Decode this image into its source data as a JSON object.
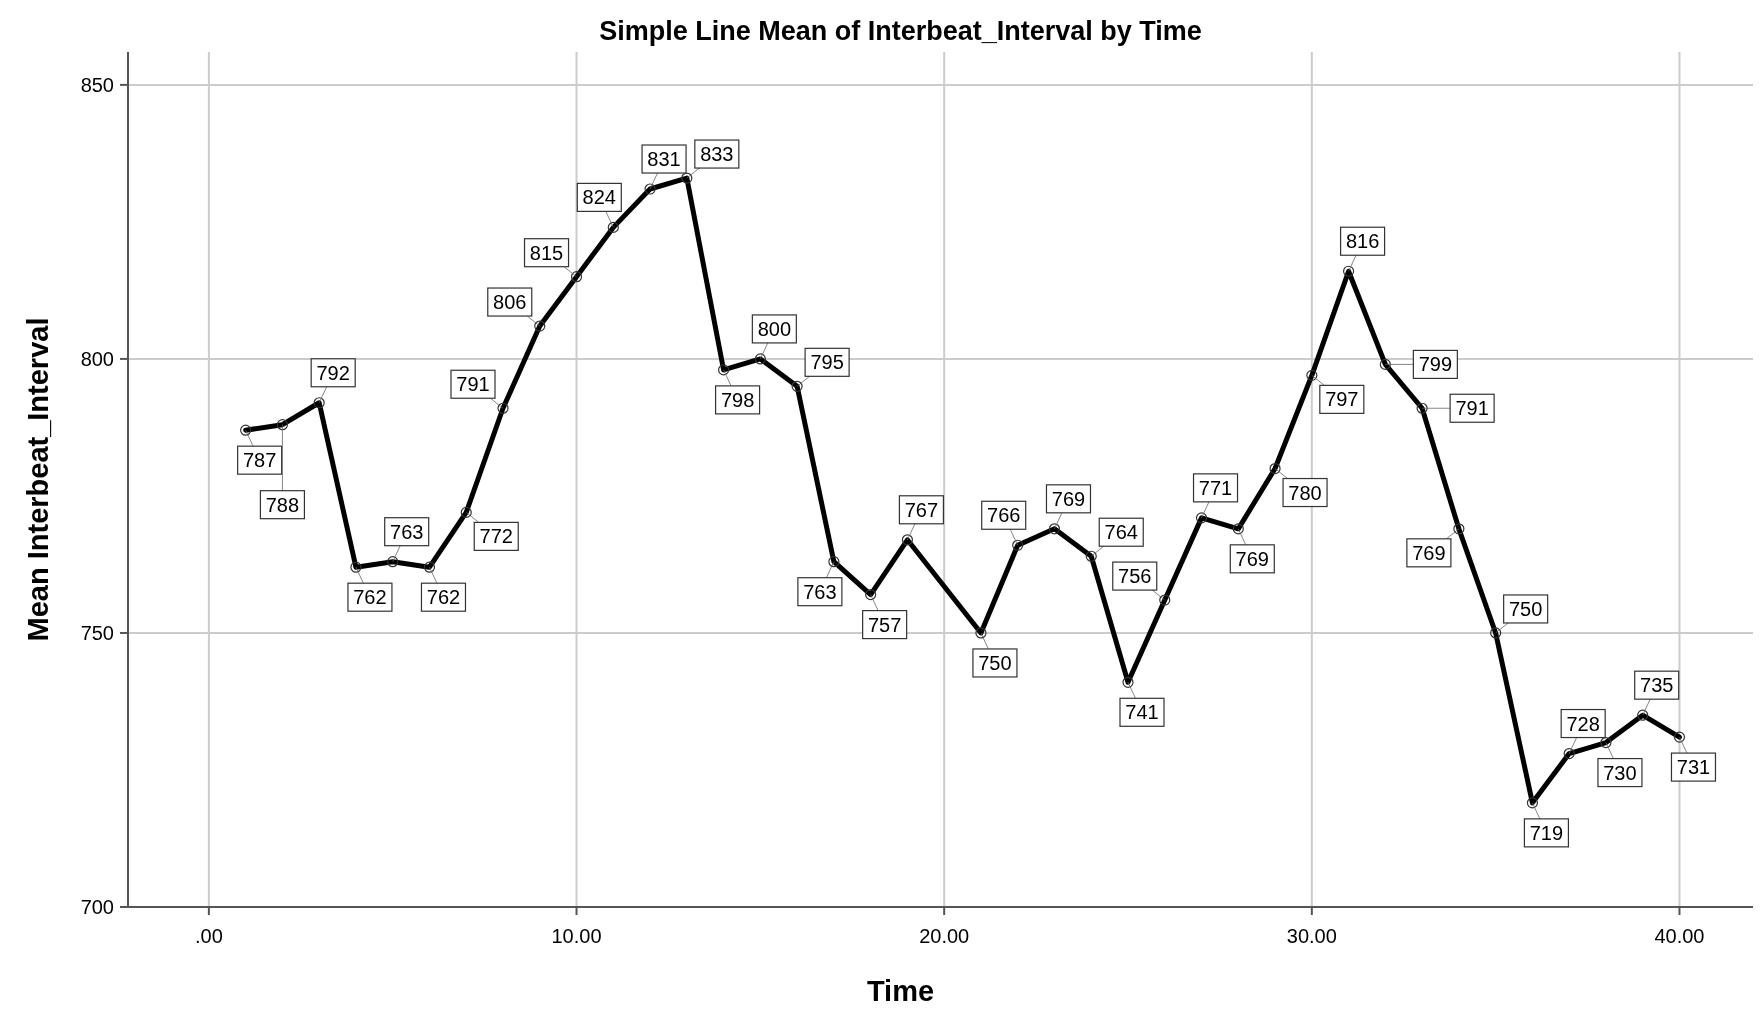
{
  "chart_data": {
    "type": "line",
    "title": "Simple Line Mean of Interbeat_Interval by Time",
    "xlabel": "Time",
    "ylabel": "Mean Interbeat_Interval",
    "x": [
      1,
      2,
      3,
      4,
      5,
      6,
      7,
      8,
      9,
      10,
      11,
      12,
      13,
      14,
      15,
      16,
      17,
      18,
      19,
      21,
      22,
      23,
      24,
      25,
      26,
      27,
      28,
      29,
      30,
      31,
      32,
      33,
      34,
      35,
      36,
      37,
      38,
      39,
      40
    ],
    "series": [
      {
        "color": "#000000",
        "values": [
          787,
          788,
          792,
          762,
          763,
          762,
          772,
          791,
          806,
          815,
          824,
          831,
          833,
          798,
          800,
          795,
          763,
          757,
          767,
          750,
          766,
          769,
          764,
          741,
          756,
          771,
          769,
          780,
          797,
          816,
          799,
          791,
          769,
          750,
          719,
          728,
          730,
          735,
          731
        ]
      }
    ],
    "xlim": [
      -2.2,
      42
    ],
    "xticks": [
      {
        "value": 0,
        "label": ".00"
      },
      {
        "value": 10,
        "label": "10.00"
      },
      {
        "value": 20,
        "label": "20.00"
      },
      {
        "value": 30,
        "label": "30.00"
      },
      {
        "value": 40,
        "label": "40.00"
      }
    ],
    "ylim": [
      700,
      856
    ],
    "yticks": [
      700,
      750,
      800,
      850
    ],
    "grid": true,
    "marker": "circle",
    "line_style": "solid",
    "data_labels": true
  }
}
